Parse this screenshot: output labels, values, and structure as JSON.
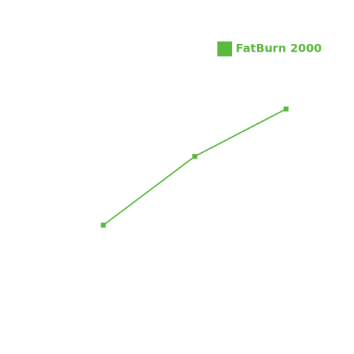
{
  "chart_data": {
    "type": "line",
    "categories": [
      null,
      null,
      null
    ],
    "series": [
      {
        "name": "FatBurn 2000",
        "color": "#5cb940",
        "values": [
          30.5,
          54.75,
          71.5
        ]
      }
    ],
    "ylim": [
      0,
      100
    ],
    "legend": "top-right"
  }
}
